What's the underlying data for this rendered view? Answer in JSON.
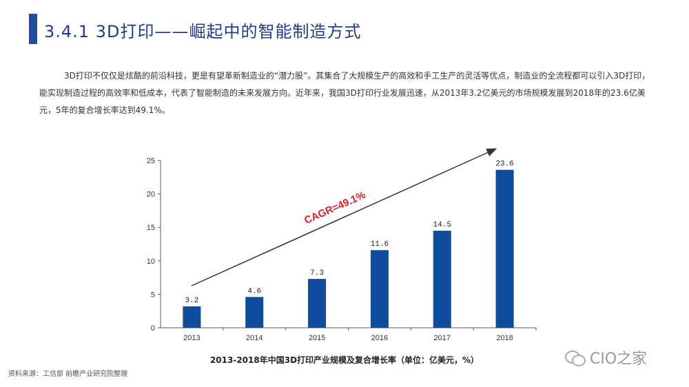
{
  "header": {
    "title": "3.4.1 3D打印——崛起中的智能制造方式"
  },
  "body": {
    "paragraph": "3D打印不仅仅是炫酷的前沿科技，更是有望革新制造业的“潜力股”。其集合了大规模生产的高效和手工生产的灵活等优点，制造业的全流程都可以引入3D打印，能实现制造过程的高效率和低成本，代表了智能制造的未来发展方向。近年来，我国3D打印行业发展迅速，从2013年3.2亿美元的市场规模发展到2018年的23.6亿美元，5年的复合增长率达到49.1%。"
  },
  "chart_data": {
    "type": "bar",
    "title": "2013-2018年中国3D打印产业规模及复合增长率（单位：亿美元，%）",
    "categories": [
      "2013",
      "2014",
      "2015",
      "2016",
      "2017",
      "2018"
    ],
    "values": [
      3.2,
      4.6,
      7.3,
      11.6,
      14.5,
      23.6
    ],
    "data_labels": [
      "3.2",
      "4.6",
      "7.3",
      "11.6",
      "14.5",
      "23.6"
    ],
    "ylim": [
      0,
      25
    ],
    "yticks": [
      0,
      5,
      10,
      15,
      20,
      25
    ],
    "xlabel": "",
    "ylabel": "",
    "annotation": "CAGR=49.1%",
    "bar_color": "#0f4c9c",
    "annotation_color": "#e0202a",
    "grid": false
  },
  "footer": {
    "source": "资料来源：工信部 前瞻产业研究院整理",
    "watermark": "CIO之家"
  }
}
